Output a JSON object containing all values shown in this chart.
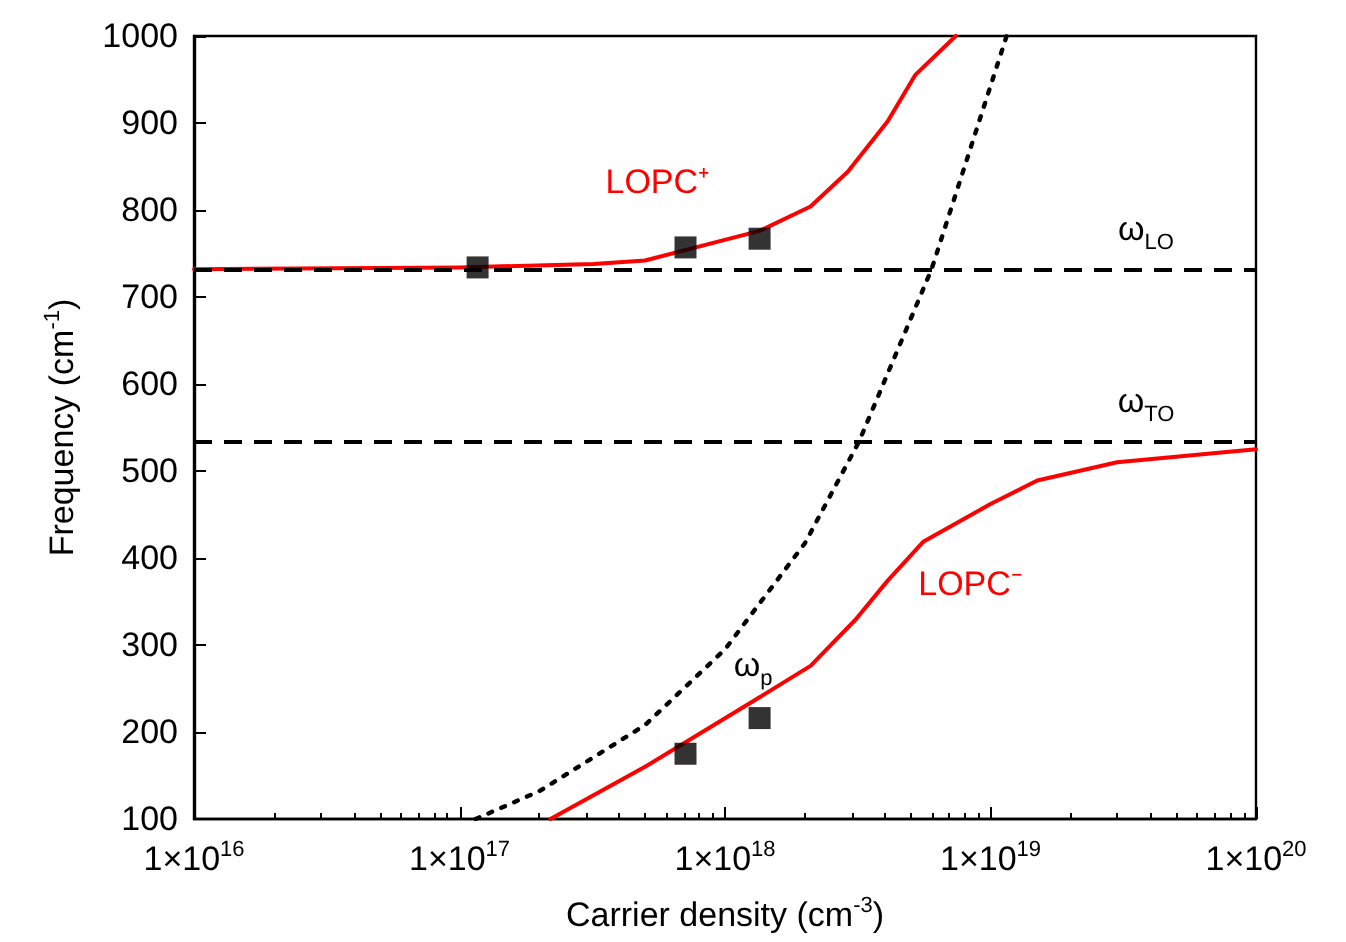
{
  "chart_data": {
    "type": "line",
    "xlabel": "Carrier density (cm$^{-3}$)",
    "ylabel": "Frequency (cm$^{-1}$)",
    "xlim": [
      1e+16,
      1e+20
    ],
    "xticks": [
      {
        "value": 1e+16,
        "label": "1×10$^{16}$"
      },
      {
        "value": 1e+17,
        "label": "1×10$^{17}$"
      },
      {
        "value": 1e+18,
        "label": "1×10$^{18}$"
      },
      {
        "value": 1e+19,
        "label": "1×10$^{19}$"
      },
      {
        "value": 1e+20,
        "label": "1×10$^{20}$"
      }
    ],
    "ylim": [
      100,
      1000
    ],
    "yticks": [
      100,
      200,
      300,
      400,
      500,
      600,
      700,
      800,
      900,
      1000
    ],
    "log": "x",
    "grid": false,
    "series": [
      {
        "name": "LOPC⁺",
        "color": "#ff0000",
        "line_style": "solid",
        "marker": "none",
        "x": [
          1e+16,
          1e+17,
          3.2e+17,
          5e+17,
          1.35e+18,
          2.1e+18,
          2.9e+18,
          4.1e+18,
          5.2e+18,
          7.4e+18
        ],
        "values": [
          732,
          734,
          738,
          742,
          776,
          804,
          844,
          902,
          955,
          1000
        ]
      },
      {
        "name": "LOPC⁻",
        "color": "#ff0000",
        "line_style": "solid",
        "marker": "none",
        "x": [
          2.2e+17,
          5e+17,
          1.35e+18,
          2.1e+18,
          3.1e+18,
          4.1e+18,
          5.6e+18,
          1e+19,
          1.5e+19,
          3e+19,
          1e+20
        ],
        "values": [
          100,
          160,
          240,
          276,
          329,
          374,
          419,
          462,
          489,
          510,
          525
        ]
      },
      {
        "name": "ω$_{p}$",
        "color": "#000000",
        "line_style": "dotted",
        "marker": "none",
        "x": [
          1.15e+17,
          2e+17,
          5e+17,
          1e+18,
          2e+18,
          3.2e+18,
          6e+18,
          1.15e+19
        ],
        "values": [
          100,
          132,
          208,
          295,
          417,
          534,
          732,
          1000
        ]
      },
      {
        "type": "scatter",
        "color": "#000000",
        "marker": "square",
        "x": [
          1.17e+17,
          7.1e+17,
          1.35e+18,
          7.1e+17,
          1.35e+18
        ],
        "values": [
          734,
          757,
          767,
          175,
          216
        ]
      }
    ],
    "ref_lines": [
      {
        "axis": "y",
        "value": 732,
        "label": "ω$_{LO}$",
        "color": "#000000",
        "line_style": "dashed"
      },
      {
        "axis": "y",
        "value": 534,
        "label": "ω$_{TO}$",
        "color": "#000000",
        "line_style": "dashed"
      }
    ]
  }
}
